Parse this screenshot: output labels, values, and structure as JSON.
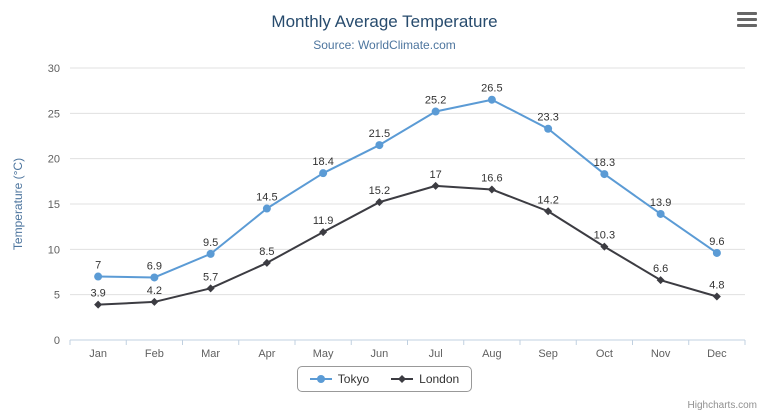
{
  "chart": {
    "credits": "Highcharts.com",
    "icons": {
      "context_menu": "hamburger-menu-icon"
    }
  },
  "chart_data": {
    "type": "line",
    "title": "Monthly Average Temperature",
    "subtitle": "Source: WorldClimate.com",
    "categories": [
      "Jan",
      "Feb",
      "Mar",
      "Apr",
      "May",
      "Jun",
      "Jul",
      "Aug",
      "Sep",
      "Oct",
      "Nov",
      "Dec"
    ],
    "series": [
      {
        "name": "Tokyo",
        "color": "#5b9bd5",
        "marker": "circle",
        "values": [
          7,
          6.9,
          9.5,
          14.5,
          18.4,
          21.5,
          25.2,
          26.5,
          23.3,
          18.3,
          13.9,
          9.6
        ]
      },
      {
        "name": "London",
        "color": "#3c3c42",
        "marker": "diamond",
        "values": [
          3.9,
          4.2,
          5.7,
          8.5,
          11.9,
          15.2,
          17,
          16.6,
          14.2,
          10.3,
          6.6,
          4.8
        ]
      }
    ],
    "xlabel": "",
    "ylabel": "Temperature (°C)",
    "ylim": [
      0,
      30
    ],
    "ytick_interval": 5,
    "grid": true,
    "legend_position": "bottom",
    "colors": {
      "title": "#274b6d",
      "subtitle": "#4d759e",
      "axis_label": "#606060",
      "gridline": "#e0e0e0",
      "axis_line": "#c0d0e0",
      "data_label": "#333333"
    }
  }
}
